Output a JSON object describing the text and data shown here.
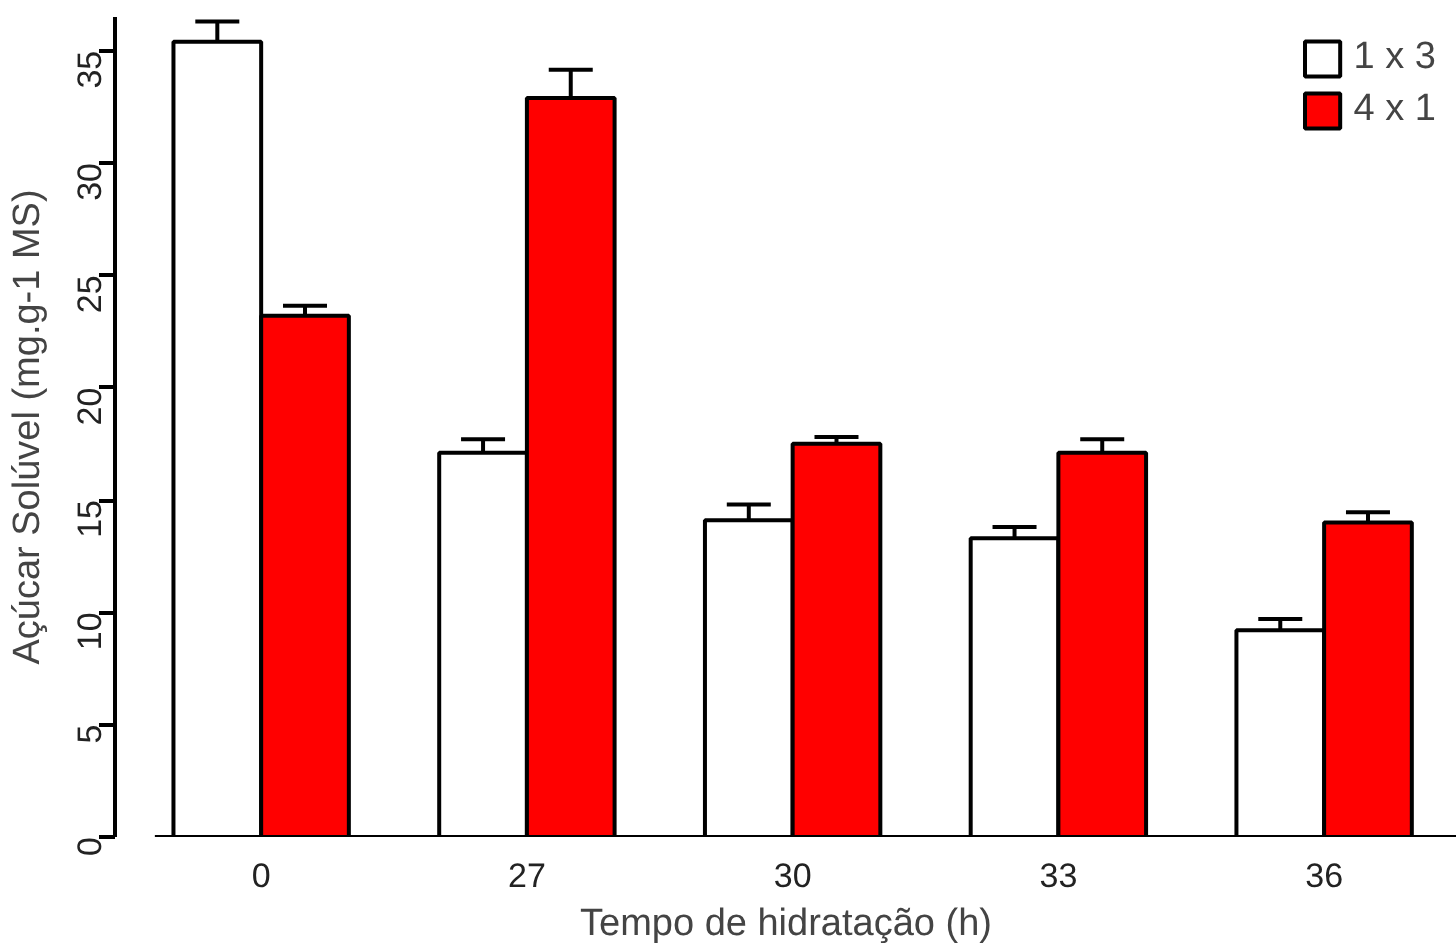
{
  "chart_data": {
    "type": "bar",
    "xlabel": "Tempo de hidratação (h)",
    "ylabel": "Açúcar Solúvel (mg.g-1 MS)",
    "categories": [
      "0",
      "27",
      "30",
      "33",
      "36"
    ],
    "series": [
      {
        "name": "1 x 3",
        "color": "#ffffff",
        "values": [
          35.4,
          17.1,
          14.1,
          13.3,
          9.2
        ],
        "errors": [
          0.9,
          0.6,
          0.7,
          0.5,
          0.5
        ]
      },
      {
        "name": "4 x 1",
        "color": "#ff0000",
        "values": [
          23.2,
          32.9,
          17.5,
          17.1,
          14.0
        ],
        "errors": [
          0.45,
          1.25,
          0.3,
          0.6,
          0.45
        ]
      }
    ],
    "ylim": [
      0,
      36.5
    ],
    "yticks": [
      0,
      5,
      10,
      15,
      20,
      25,
      30,
      35
    ],
    "grid": false,
    "legend": "top right"
  }
}
